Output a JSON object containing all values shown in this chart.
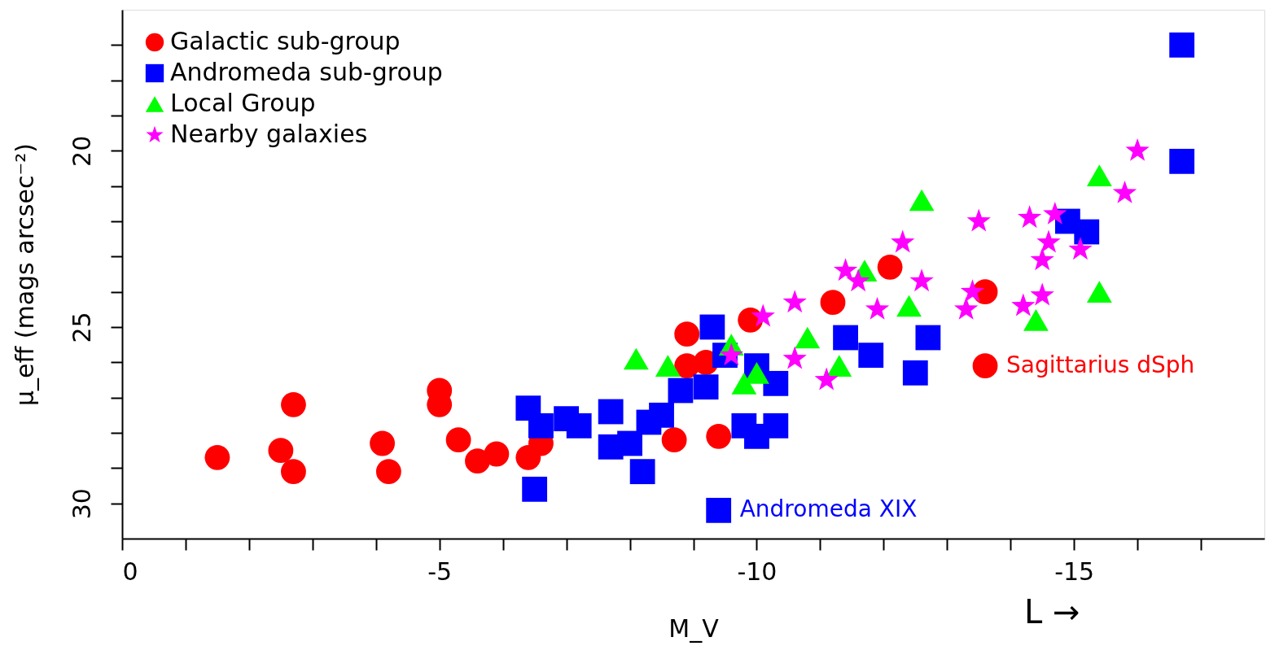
{
  "chart_data": {
    "type": "scatter",
    "xlabel": "M_V",
    "ylabel": "μ_eff (mags arcsec⁻²)",
    "xlim": [
      0,
      -18
    ],
    "ylim": [
      31,
      16
    ],
    "xticks": [
      0,
      {
        "value": -1,
        "label": null
      },
      {
        "value": -2,
        "label": null
      },
      {
        "value": -3,
        "label": null
      },
      {
        "value": -4,
        "label": null
      },
      -5,
      {
        "value": -6,
        "label": null
      },
      {
        "value": -7,
        "label": null
      },
      {
        "value": -8,
        "label": null
      },
      {
        "value": -9,
        "label": null
      },
      -10,
      {
        "value": -11,
        "label": null
      },
      {
        "value": -12,
        "label": null
      },
      {
        "value": -13,
        "label": null
      },
      {
        "value": -14,
        "label": null
      },
      -15,
      {
        "value": -16,
        "label": null
      },
      {
        "value": -17,
        "label": null
      }
    ],
    "yticks": [
      {
        "value": 17,
        "label": null
      },
      {
        "value": 18,
        "label": null
      },
      {
        "value": 19,
        "label": null
      },
      20,
      {
        "value": 21,
        "label": null
      },
      {
        "value": 22,
        "label": null
      },
      {
        "value": 23,
        "label": null
      },
      {
        "value": 24,
        "label": null
      },
      25,
      {
        "value": 26,
        "label": null
      },
      {
        "value": 27,
        "label": null
      },
      {
        "value": 28,
        "label": null
      },
      {
        "value": 29,
        "label": null
      },
      30
    ],
    "grid": false,
    "legend": "top left",
    "series": [
      {
        "name": "Galactic sub-group",
        "color": "#ff0000",
        "marker": "circle",
        "x": [
          -1.5,
          -2.5,
          -2.7,
          -2.7,
          -4.1,
          -4.2,
          -5.0,
          -5.0,
          -5.3,
          -5.6,
          -5.9,
          -6.4,
          -6.6,
          -8.7,
          -9.4,
          -8.9,
          -8.9,
          -9.2,
          -9.9,
          -11.2,
          -12.1,
          -13.6,
          -13.6
        ],
        "values": [
          28.7,
          28.5,
          29.1,
          27.2,
          28.3,
          29.1,
          27.2,
          26.8,
          28.2,
          28.8,
          28.6,
          28.7,
          28.3,
          28.2,
          28.1,
          25.2,
          26.1,
          26.0,
          24.8,
          24.3,
          23.3,
          24.0,
          26.1
        ]
      },
      {
        "name": "Andromeda sub-group",
        "color": "#0000ff",
        "marker": "square",
        "x": [
          -16.7,
          -16.7,
          -6.4,
          -6.6,
          -7.0,
          -7.2,
          -7.7,
          -7.7,
          -8.0,
          -8.3,
          -8.5,
          -8.2,
          -6.5,
          -9.4,
          -8.8,
          -9.2,
          -9.3,
          -9.5,
          -10.3,
          -10.0,
          -9.8,
          -10.0,
          -10.3,
          -11.4,
          -11.8,
          -12.7,
          -12.5,
          -14.9,
          -15.2
        ],
        "values": [
          17.0,
          20.3,
          27.3,
          27.8,
          27.6,
          27.8,
          27.4,
          28.4,
          28.3,
          27.7,
          27.5,
          29.1,
          29.6,
          30.2,
          26.8,
          26.7,
          25.0,
          25.8,
          26.6,
          26.1,
          27.8,
          28.1,
          27.8,
          25.3,
          25.8,
          25.3,
          26.3,
          22.0,
          22.3
        ]
      },
      {
        "name": "Local Group",
        "color": "#00ff00",
        "marker": "triangle",
        "x": [
          -8.1,
          -8.6,
          -9.6,
          -9.8,
          -10.0,
          -10.8,
          -11.3,
          -12.6,
          -15.4,
          -15.4,
          -14.4,
          -12.4,
          -11.7
        ],
        "values": [
          25.9,
          26.1,
          25.5,
          26.6,
          26.3,
          25.3,
          26.1,
          21.4,
          20.7,
          24.0,
          24.8,
          24.4,
          23.4
        ]
      },
      {
        "name": "Nearby galaxies",
        "color": "#ff00ff",
        "marker": "star",
        "x": [
          -16.0,
          -15.8,
          -13.5,
          -14.3,
          -14.7,
          -14.6,
          -14.5,
          -15.1,
          -12.3,
          -11.4,
          -11.6,
          -12.6,
          -11.9,
          -13.4,
          -13.3,
          -14.2,
          -14.5,
          -11.1,
          -10.1,
          -10.6,
          -9.6,
          -10.6
        ],
        "values": [
          20.0,
          21.2,
          22.0,
          21.9,
          21.8,
          22.6,
          23.1,
          22.8,
          22.6,
          23.4,
          23.7,
          23.7,
          24.5,
          24.0,
          24.5,
          24.4,
          24.1,
          26.5,
          24.7,
          24.3,
          25.8,
          25.9
        ]
      }
    ],
    "annotations": [
      {
        "text": "Sagittarius dSph",
        "x": -13.6,
        "y": 26.1
      },
      {
        "text": "Andromeda XIX",
        "x": -9.4,
        "y": 30.2
      },
      "L →"
    ]
  }
}
